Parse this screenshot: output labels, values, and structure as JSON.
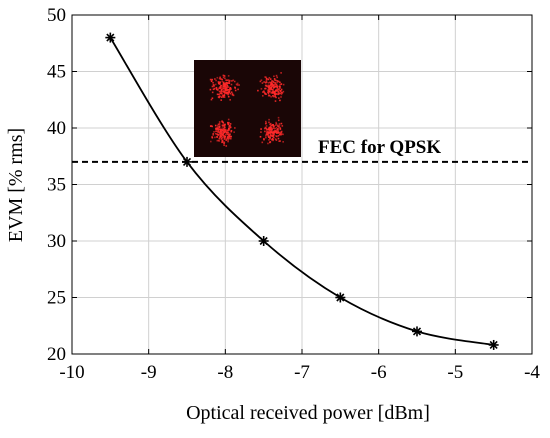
{
  "chart_data": {
    "type": "line",
    "title": "",
    "xlabel": "Optical received power [dBm]",
    "ylabel": "EVM [% rms]",
    "xlim": [
      -10,
      -4
    ],
    "ylim": [
      20,
      50
    ],
    "xticks": [
      -10,
      -9,
      -8,
      -7,
      -6,
      -5,
      -4
    ],
    "yticks": [
      20,
      25,
      30,
      35,
      40,
      45,
      50
    ],
    "grid": true,
    "series": [
      {
        "marker": "asterisk",
        "color": "#000000",
        "x": [
          -9.5,
          -8.5,
          -7.5,
          -6.5,
          -5.5,
          -4.5
        ],
        "y": [
          48,
          37,
          30,
          25,
          22,
          20.8
        ]
      }
    ],
    "threshold": {
      "y": 37,
      "style": "dashed",
      "label": "FEC for QPSK"
    },
    "inset": {
      "kind": "QPSK constellation image",
      "background": "#1a0606",
      "point_color": "#ff2a2a"
    }
  }
}
